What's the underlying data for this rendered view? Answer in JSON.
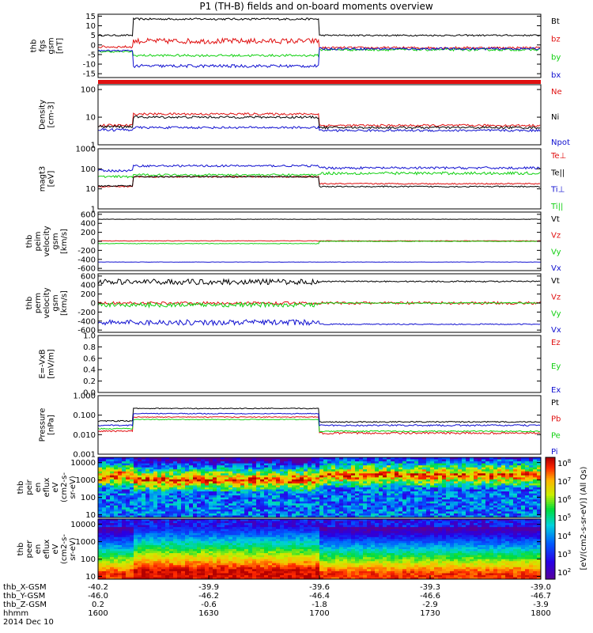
{
  "title": "P1 (TH-B) fields and on-board moments overview",
  "colors": {
    "black": "#000000",
    "red": "#e01010",
    "green": "#10d010",
    "blue": "#1010d0"
  },
  "chart_data": {
    "type": "line",
    "x_axis": {
      "label_rows": [
        "thb_X-GSM",
        "thb_Y-GSM",
        "thb_Z-GSM",
        "hhmm"
      ],
      "date_label": "2014 Dec 10",
      "ticks": [
        {
          "time": "1600",
          "vals": [
            "-40.2",
            "-46.0",
            "0.2"
          ]
        },
        {
          "time": "1630",
          "vals": [
            "-39.9",
            "-46.2",
            "-0.6"
          ]
        },
        {
          "time": "1700",
          "vals": [
            "-39.6",
            "-46.4",
            "-1.8"
          ]
        },
        {
          "time": "1730",
          "vals": [
            "-39.3",
            "-46.6",
            "-2.9"
          ]
        },
        {
          "time": "1800",
          "vals": [
            "-39.0",
            "-46.7",
            "-3.9"
          ]
        }
      ]
    },
    "panels": [
      {
        "id": "fgs",
        "ylabel": [
          "thb",
          "fgs",
          "gsm",
          "[nT]"
        ],
        "scale": "linear",
        "ylim": [
          -17,
          16
        ],
        "ticks": [
          "15",
          "10",
          "5",
          "0",
          "-5",
          "-10",
          "-15"
        ],
        "tickvals": [
          15,
          10,
          5,
          0,
          -5,
          -10,
          -15
        ],
        "series": [
          {
            "name": "Bt",
            "color": "black",
            "segments": [
              [
                0,
                0.08,
                5
              ],
              [
                0.08,
                0.5,
                13.5
              ],
              [
                0.5,
                1,
                5
              ]
            ],
            "noise": [
              0.4,
              0.5,
              0.4
            ]
          },
          {
            "name": "bz",
            "color": "red",
            "segments": [
              [
                0,
                0.08,
                -1
              ],
              [
                0.08,
                0.5,
                2
              ],
              [
                0.5,
                1,
                -1.5
              ]
            ],
            "noise": [
              0.6,
              1.4,
              0.6
            ]
          },
          {
            "name": "by",
            "color": "green",
            "segments": [
              [
                0,
                0.08,
                -3.5
              ],
              [
                0.08,
                0.5,
                -5.5
              ],
              [
                0.5,
                1,
                -2.5
              ]
            ],
            "noise": [
              0.4,
              0.6,
              0.6
            ]
          },
          {
            "name": "bx",
            "color": "blue",
            "segments": [
              [
                0,
                0.08,
                -3
              ],
              [
                0.08,
                0.5,
                -11
              ],
              [
                0.5,
                1,
                -2
              ]
            ],
            "noise": [
              0.4,
              0.8,
              0.6
            ]
          }
        ]
      },
      {
        "id": "density",
        "ylabel": [
          "Density",
          "[cm-3]"
        ],
        "scale": "log",
        "ylim": [
          1,
          150
        ],
        "ticks": [
          "100",
          "10",
          "1"
        ],
        "tickvals": [
          100,
          10,
          1
        ],
        "series": [
          {
            "name": "Ne",
            "color": "red",
            "segments": [
              [
                0,
                0.08,
                5
              ],
              [
                0.08,
                0.5,
                13
              ],
              [
                0.5,
                1,
                5
              ]
            ],
            "noise": [
              0.05,
              0.04,
              0.04
            ]
          },
          {
            "name": "Ni",
            "color": "black",
            "segments": [
              [
                0,
                0.08,
                4.5
              ],
              [
                0.08,
                0.5,
                10
              ],
              [
                0.5,
                1,
                4.2
              ]
            ],
            "noise": [
              0.05,
              0.04,
              0.04
            ]
          },
          {
            "name": "Npot",
            "color": "blue",
            "segments": [
              [
                0,
                0.08,
                3.5
              ],
              [
                0.08,
                0.5,
                4.2
              ],
              [
                0.5,
                1,
                3.3
              ]
            ],
            "noise": [
              0.05,
              0.04,
              0.04
            ]
          }
        ]
      },
      {
        "id": "temp",
        "ylabel": [
          "magt3",
          "[eV]"
        ],
        "scale": "log",
        "ylim": [
          1,
          1000
        ],
        "ticks": [
          "1000",
          "100",
          "10",
          "1"
        ],
        "tickvals": [
          1000,
          100,
          10,
          1
        ],
        "series": [
          {
            "name": "Te⊥",
            "color": "red",
            "segments": [
              [
                0,
                0.08,
                13
              ],
              [
                0.08,
                0.5,
                40
              ],
              [
                0.5,
                1,
                18
              ]
            ],
            "noise": [
              0.03,
              0.03,
              0.03
            ]
          },
          {
            "name": "Te||",
            "color": "black",
            "segments": [
              [
                0,
                0.08,
                14
              ],
              [
                0.08,
                0.5,
                40
              ],
              [
                0.5,
                1,
                13
              ]
            ],
            "noise": [
              0.03,
              0.03,
              0.03
            ]
          },
          {
            "name": "Ti⊥",
            "color": "blue",
            "segments": [
              [
                0,
                0.08,
                80
              ],
              [
                0.08,
                0.5,
                140
              ],
              [
                0.5,
                1,
                110
              ]
            ],
            "noise": [
              0.06,
              0.05,
              0.06
            ]
          },
          {
            "name": "Ti||",
            "color": "green",
            "segments": [
              [
                0,
                0.08,
                40
              ],
              [
                0.08,
                0.5,
                50
              ],
              [
                0.5,
                1,
                60
              ]
            ],
            "noise": [
              0.06,
              0.05,
              0.07
            ]
          }
        ]
      },
      {
        "id": "peim",
        "ylabel": [
          "thb",
          "peim",
          "velocity",
          "gsm",
          "[km/s]"
        ],
        "scale": "linear",
        "ylim": [
          -650,
          650
        ],
        "ticks": [
          "600",
          "400",
          "200",
          "0",
          "-200",
          "-400",
          "-600"
        ],
        "tickvals": [
          600,
          400,
          200,
          0,
          -200,
          -400,
          -600
        ],
        "series": [
          {
            "name": "Vt",
            "color": "black",
            "segments": [
              [
                0,
                1,
                490
              ]
            ],
            "noise": [
              4
            ]
          },
          {
            "name": "Vz",
            "color": "red",
            "segments": [
              [
                0,
                1,
                10
              ]
            ],
            "noise": [
              6
            ]
          },
          {
            "name": "Vy",
            "color": "green",
            "segments": [
              [
                0,
                0.5,
                -50
              ],
              [
                0.5,
                1,
                0
              ]
            ],
            "noise": [
              6,
              6
            ]
          },
          {
            "name": "Vx",
            "color": "blue",
            "segments": [
              [
                0,
                1,
                -460
              ]
            ],
            "noise": [
              4
            ]
          }
        ]
      },
      {
        "id": "perm",
        "ylabel": [
          "thb",
          "perm",
          "velocity",
          "gsm",
          "[km/s]"
        ],
        "scale": "linear",
        "ylim": [
          -650,
          650
        ],
        "ticks": [
          "600",
          "400",
          "200",
          "0",
          "-200",
          "-400",
          "-600"
        ],
        "tickvals": [
          600,
          400,
          200,
          0,
          -200,
          -400,
          -600
        ],
        "series": [
          {
            "name": "Vt",
            "color": "black",
            "segments": [
              [
                0,
                0.5,
                470
              ],
              [
                0.5,
                1,
                480
              ]
            ],
            "noise": [
              60,
              15
            ]
          },
          {
            "name": "Vz",
            "color": "red",
            "segments": [
              [
                0,
                1,
                0
              ]
            ],
            "noise": [
              30,
              10
            ]
          },
          {
            "name": "Vy",
            "color": "green",
            "segments": [
              [
                0,
                0.5,
                -40
              ],
              [
                0.5,
                1,
                0
              ]
            ],
            "noise": [
              50,
              12
            ]
          },
          {
            "name": "Vx",
            "color": "blue",
            "segments": [
              [
                0,
                0.5,
                -430
              ],
              [
                0.5,
                1,
                -470
              ]
            ],
            "noise": [
              60,
              12
            ]
          }
        ]
      },
      {
        "id": "efield",
        "ylabel": [
          "E=-VxB",
          "[mV/m]"
        ],
        "scale": "linear",
        "ylim": [
          0,
          1
        ],
        "ticks": [
          "1.0",
          "0.8",
          "0.6",
          "0.4",
          "0.2",
          "0.0"
        ],
        "tickvals": [
          1,
          0.8,
          0.6,
          0.4,
          0.2,
          0
        ],
        "series": [
          {
            "name": "Ez",
            "color": "red",
            "segments": []
          },
          {
            "name": "Ey",
            "color": "green",
            "segments": []
          },
          {
            "name": "Ex",
            "color": "blue",
            "segments": []
          }
        ]
      },
      {
        "id": "pressure",
        "ylabel": [
          "Pressure",
          "[nPa]"
        ],
        "scale": "log",
        "ylim": [
          0.001,
          1
        ],
        "ticks": [
          "1.000",
          "0.100",
          "0.010",
          "0.001"
        ],
        "tickvals": [
          1,
          0.1,
          0.01,
          0.001
        ],
        "series": [
          {
            "name": "Pt",
            "color": "black",
            "segments": [
              [
                0,
                0.08,
                0.05
              ],
              [
                0.08,
                0.5,
                0.22
              ],
              [
                0.5,
                1,
                0.045
              ]
            ],
            "noise": [
              0.03,
              0.02,
              0.03
            ]
          },
          {
            "name": "Pb",
            "color": "red",
            "segments": [
              [
                0,
                0.08,
                0.015
              ],
              [
                0.08,
                0.5,
                0.08
              ],
              [
                0.5,
                1,
                0.012
              ]
            ],
            "noise": [
              0.04,
              0.02,
              0.05
            ]
          },
          {
            "name": "Pe",
            "color": "green",
            "segments": [
              [
                0,
                0.08,
                0.02
              ],
              [
                0.08,
                0.5,
                0.06
              ],
              [
                0.5,
                1,
                0.015
              ]
            ],
            "noise": [
              0.03,
              0.02,
              0.03
            ]
          },
          {
            "name": "Pi",
            "color": "blue",
            "segments": [
              [
                0,
                0.08,
                0.03
              ],
              [
                0.08,
                0.5,
                0.12
              ],
              [
                0.5,
                1,
                0.03
              ]
            ],
            "noise": [
              0.03,
              0.02,
              0.04
            ]
          }
        ]
      }
    ],
    "spectrograms": [
      {
        "id": "peir",
        "ylabel": [
          "thb",
          "peir",
          "en",
          "eflux",
          "eV",
          "(cm2-s-",
          "sr-eV)"
        ],
        "scale": "log",
        "ylim": [
          7,
          20000
        ],
        "ticks": [
          "10000",
          "1000",
          "100",
          "10"
        ],
        "tickvals": [
          10000,
          1000,
          100,
          10
        ]
      },
      {
        "id": "peer",
        "ylabel": [
          "thb",
          "peer",
          "en",
          "eflux",
          "eV",
          "(cm2-s-",
          "sr-eV)"
        ],
        "scale": "log",
        "ylim": [
          7,
          20000
        ],
        "ticks": [
          "10000",
          "1000",
          "100",
          "10"
        ],
        "tickvals": [
          10000,
          1000,
          100,
          10
        ]
      }
    ],
    "colorbar": {
      "ticks": [
        "10^8",
        "10^7",
        "10^6",
        "10^5",
        "10^4",
        "10^3",
        "10^2"
      ],
      "label": "[eV/(cm2-s-sr-eV)] (All Qs)"
    }
  }
}
